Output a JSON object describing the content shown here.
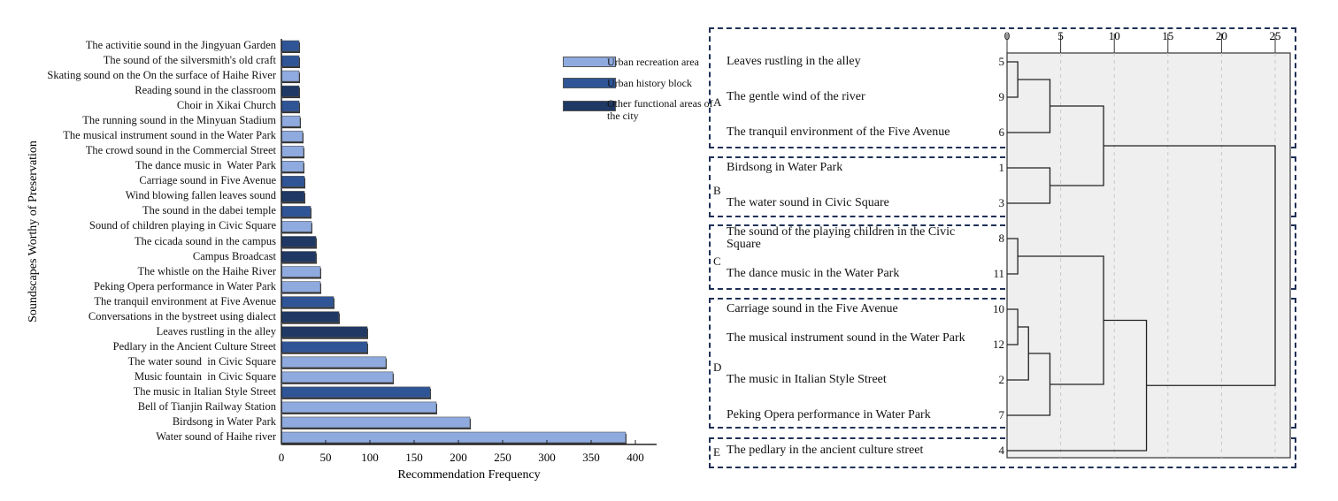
{
  "chart_data": [
    {
      "type": "bar",
      "orientation": "horizontal",
      "xlabel": "Recommendation Frequency",
      "ylabel": "Soundscapes Worthy of Preservation",
      "xlim": [
        0,
        400
      ],
      "xticks": [
        0,
        50,
        100,
        150,
        200,
        250,
        300,
        350,
        400
      ],
      "grid": false,
      "legend_placement": "top-right",
      "legend": [
        {
          "name": "Urban recreation area",
          "color": "#8eaadf"
        },
        {
          "name": "Urban history block",
          "color": "#2f5597"
        },
        {
          "name": "Other functional areas of the city",
          "color": "#1f3864"
        }
      ],
      "categories": [
        "The activitie sound in the Jingyuan Garden",
        "The sound of the silversmith's old craft",
        "Skating sound on the On the surface of Haihe River",
        "Reading sound in the classroom",
        "Choir in Xikai Church",
        "The running sound in the Minyuan Stadium",
        "The musical instrument sound in the Water Park",
        "The crowd sound in the Commercial Street",
        "The dance music in  Water Park",
        "Carriage sound in Five Avenue",
        "Wind blowing fallen leaves sound",
        "The sound in the dabei temple",
        "Sound of children playing in Civic Square",
        "The cicada sound in the campus",
        "Campus Broadcast",
        "The whistle on the Haihe River",
        "Peking Opera performance in Water Park",
        "The tranquil environment at Five Avenue",
        "Conversations in the bystreet using dialect",
        "Leaves rustling in the alley",
        "Pedlary in the Ancient Culture Street",
        "The water sound  in Civic Square",
        "Music fountain  in Civic Square",
        "The music in Italian Style Street",
        "Bell of Tianjin Railway Station",
        "Birdsong in Water Park",
        "Water sound of Haihe river"
      ],
      "values": [
        20,
        20,
        20,
        20,
        20,
        21,
        24,
        25,
        25,
        26,
        26,
        33,
        34,
        39,
        39,
        44,
        44,
        59,
        65,
        97,
        97,
        118,
        126,
        168,
        175,
        213,
        389
      ],
      "groups": [
        1,
        1,
        0,
        2,
        1,
        0,
        0,
        0,
        0,
        1,
        2,
        1,
        0,
        2,
        2,
        0,
        0,
        1,
        2,
        2,
        1,
        0,
        0,
        1,
        0,
        0,
        0
      ]
    },
    {
      "type": "dendrogram",
      "xlim": [
        0,
        25
      ],
      "xticks": [
        0,
        5,
        10,
        15,
        20,
        25
      ],
      "grid": true,
      "leaves": [
        {
          "id": 5,
          "label": "Leaves rustling in the alley"
        },
        {
          "id": 9,
          "label": "The gentle wind of the river"
        },
        {
          "id": 6,
          "label": "The tranquil environment of the Five Avenue"
        },
        {
          "id": 1,
          "label": "Birdsong in Water Park"
        },
        {
          "id": 3,
          "label": "The water sound  in  Civic Square"
        },
        {
          "id": 8,
          "label": "The sound of the playing children in the Civic Square"
        },
        {
          "id": 11,
          "label": "The dance music in the Water Park"
        },
        {
          "id": 10,
          "label": "Carriage sound in the  Five Avenue"
        },
        {
          "id": 12,
          "label": "The musical instrument sound in the Water Park"
        },
        {
          "id": 2,
          "label": "The music in Italian Style Street"
        },
        {
          "id": 7,
          "label": "Peking Opera performance in Water Park"
        },
        {
          "id": 4,
          "label": "The pedlary in the ancient culture street"
        }
      ],
      "merges": [
        {
          "a": "L0",
          "b": "L1",
          "distance": 1
        },
        {
          "a": "M0",
          "b": "L2",
          "distance": 4
        },
        {
          "a": "L3",
          "b": "L4",
          "distance": 4
        },
        {
          "a": "M1",
          "b": "M2",
          "distance": 9
        },
        {
          "a": "L5",
          "b": "L6",
          "distance": 1
        },
        {
          "a": "L7",
          "b": "L8",
          "distance": 1
        },
        {
          "a": "M5",
          "b": "L9",
          "distance": 2
        },
        {
          "a": "M6",
          "b": "L10",
          "distance": 4
        },
        {
          "a": "M4",
          "b": "M7",
          "distance": 9
        },
        {
          "a": "M8",
          "b": "L11",
          "distance": 13
        },
        {
          "a": "M3",
          "b": "M9",
          "distance": 25
        }
      ],
      "groups": [
        {
          "letter": "A",
          "leaves": [
            0,
            2
          ]
        },
        {
          "letter": "B",
          "leaves": [
            3,
            4
          ]
        },
        {
          "letter": "C",
          "leaves": [
            5,
            6
          ]
        },
        {
          "letter": "D",
          "leaves": [
            7,
            10
          ]
        },
        {
          "letter": "E",
          "leaves": [
            11,
            11
          ]
        }
      ]
    }
  ]
}
